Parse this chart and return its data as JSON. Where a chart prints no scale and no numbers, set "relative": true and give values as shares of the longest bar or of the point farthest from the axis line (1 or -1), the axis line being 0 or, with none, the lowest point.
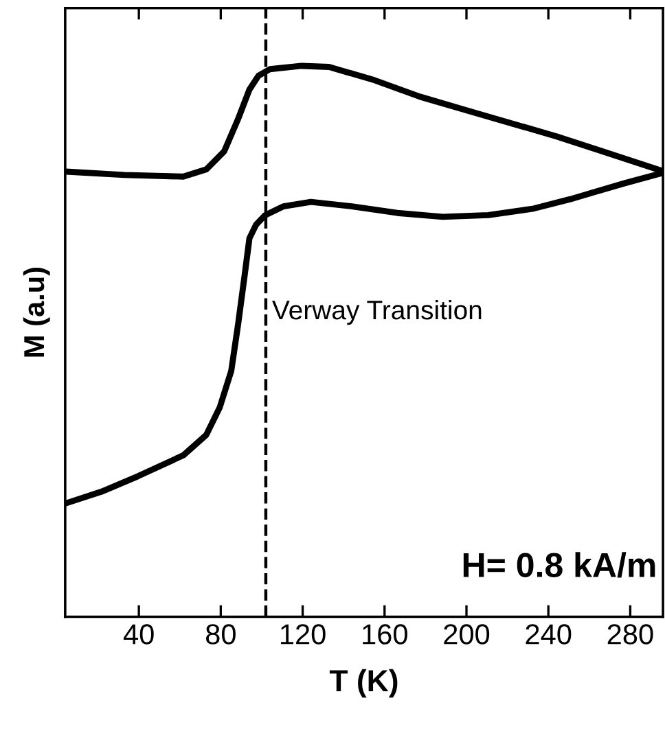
{
  "chart_data": {
    "type": "line",
    "xlabel": "T (K)",
    "ylabel": "M (a.u)",
    "relative": true,
    "xlim": [
      4,
      296
    ],
    "xticks": [
      40,
      80,
      120,
      160,
      200,
      240,
      280
    ],
    "grid": false,
    "legend": false,
    "marker": "none",
    "line_style": "solid",
    "tick_labels": "x",
    "series": [
      {
        "color": "#000000",
        "x": [
          4.4,
          32.9,
          61.7,
          72.9,
          81.7,
          88.4,
          94.0,
          98.4,
          104.0,
          119.5,
          132.9,
          155.1,
          177.3,
          199.5,
          221.7,
          244.0,
          266.2,
          295.1
        ],
        "values": [
          0.808,
          0.802,
          0.799,
          0.812,
          0.845,
          0.903,
          0.957,
          0.982,
          0.994,
          1.0,
          0.998,
          0.974,
          0.944,
          0.92,
          0.896,
          0.872,
          0.845,
          0.81
        ]
      },
      {
        "color": "#000000",
        "x": [
          4.4,
          21.7,
          39.5,
          61.7,
          72.9,
          79.5,
          85.1,
          88.4,
          91.7,
          94.0,
          97.3,
          101.7,
          110.7,
          124.0,
          144.0,
          166.2,
          188.4,
          210.7,
          232.9,
          250.7,
          261.7,
          277.3,
          295.1
        ],
        "values": [
          0.206,
          0.227,
          0.255,
          0.293,
          0.33,
          0.38,
          0.446,
          0.529,
          0.621,
          0.687,
          0.712,
          0.729,
          0.745,
          0.753,
          0.745,
          0.733,
          0.726,
          0.729,
          0.741,
          0.758,
          0.77,
          0.787,
          0.805
        ]
      }
    ],
    "ref_lines": [
      {
        "axis": "x",
        "value": 102,
        "label": "Verway Transition",
        "color": "#000000",
        "line_style": "dashed"
      }
    ],
    "annotations": [
      "H= 0.8 kA/m"
    ]
  }
}
